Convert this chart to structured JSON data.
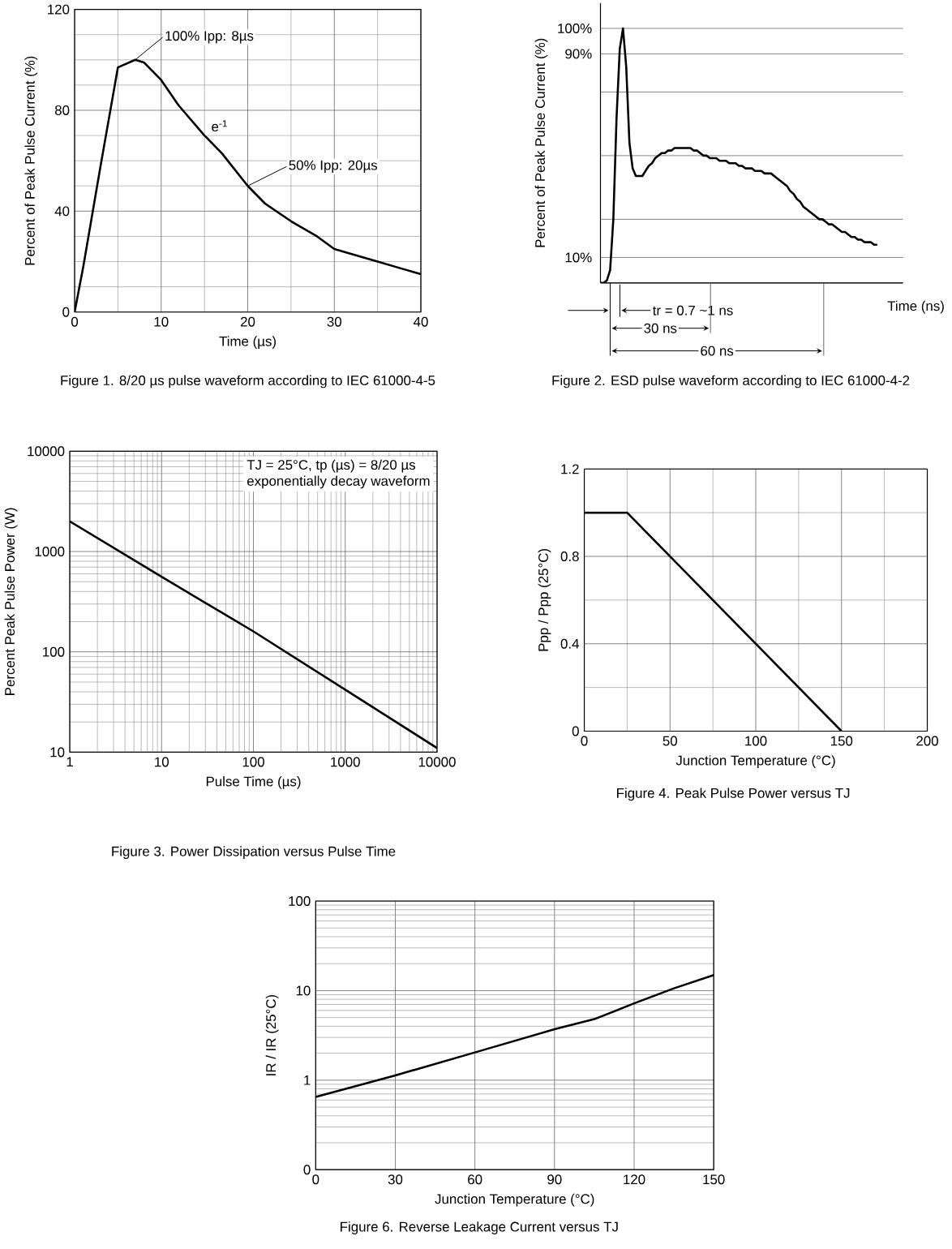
{
  "chart_data": [
    {
      "type": "line",
      "title": "Figure 1. 8/20 µs pulse waveform according to IEC 61000-4-5",
      "xlabel": "Time (µs)",
      "ylabel": "Percent of Peak Pulse Current (%)",
      "xlim": [
        0,
        40
      ],
      "ylim": [
        0,
        120
      ],
      "xticks": [
        0,
        10,
        20,
        30,
        40
      ],
      "yticks": [
        0,
        40,
        80,
        120
      ],
      "grid": true,
      "color": "#000000",
      "x": [
        0,
        1,
        3,
        5,
        7,
        8,
        10,
        12,
        15,
        17,
        20,
        22,
        25,
        28,
        30,
        32,
        35,
        38,
        40
      ],
      "values": [
        0,
        18,
        58,
        97,
        100,
        99,
        92,
        82,
        70,
        63,
        50,
        43,
        36,
        30,
        25,
        23,
        20,
        17,
        15
      ],
      "annotations": [
        {
          "text": "100% Ipp: 8µs",
          "x": 7,
          "y": 100
        },
        {
          "text": "e$^{-1}$",
          "x": 15,
          "y": 70
        },
        {
          "text": "50% Ipp: 20µs",
          "x": 20,
          "y": 50
        }
      ]
    },
    {
      "type": "line",
      "title": "Figure 2. ESD pulse waveform according to IEC 61000-4-2",
      "xlabel": "Time (ns)",
      "ylabel": "Percent of Peak Pulse Current (%)",
      "ylim": [
        0,
        110
      ],
      "yticks": [
        {
          "value": 0,
          "label": null
        },
        {
          "value": 10,
          "label": "10%"
        },
        {
          "value": 25,
          "label": null
        },
        {
          "value": 50,
          "label": null
        },
        {
          "value": 75,
          "label": null
        },
        {
          "value": 90,
          "label": "90%"
        },
        {
          "value": 100,
          "label": "100%"
        }
      ],
      "grid": "y",
      "color": "#000000",
      "categories": [
        null,
        null,
        null,
        null,
        null,
        null,
        null,
        null,
        null,
        null,
        null,
        null,
        null,
        null,
        null,
        null,
        null,
        null,
        null,
        null,
        null,
        null,
        null,
        null,
        null,
        null,
        null,
        null,
        null,
        null,
        null,
        null,
        null,
        null,
        null,
        null,
        null,
        null,
        null,
        null,
        null,
        null,
        null,
        null,
        null,
        null,
        null,
        null,
        null,
        null,
        null,
        null,
        null,
        null,
        null,
        null,
        null,
        null,
        null,
        null,
        null,
        null,
        null,
        null,
        null,
        null,
        null,
        null,
        null,
        null,
        null,
        null,
        null,
        null,
        null,
        null,
        null,
        null,
        null,
        null,
        null,
        null,
        null,
        null,
        null,
        null,
        null,
        null,
        null,
        null,
        null,
        null,
        null,
        null,
        null
      ],
      "values": [
        0,
        0,
        1,
        5,
        25,
        65,
        92,
        100,
        85,
        55,
        45,
        42,
        42,
        42,
        44,
        46,
        47,
        49,
        50,
        51,
        51,
        52,
        52,
        53,
        53,
        53,
        53,
        53,
        53,
        52,
        52,
        51,
        50,
        50,
        49,
        49,
        49,
        48,
        48,
        48,
        47,
        47,
        47,
        46,
        46,
        45,
        45,
        45,
        44,
        44,
        44,
        43,
        43,
        43,
        42,
        41,
        40,
        39,
        38,
        36,
        35,
        33,
        32,
        30,
        29,
        28,
        27,
        26,
        25,
        25,
        24,
        23,
        23,
        22,
        21,
        20,
        20,
        19,
        18,
        18,
        17,
        17,
        16,
        16,
        16,
        15,
        15,
        null,
        null,
        null,
        null,
        null,
        null,
        null,
        null
      ],
      "annotations": [
        "tr = 0.7 ~1 ns",
        "30 ns",
        "60 ns"
      ]
    },
    {
      "type": "line",
      "title": "Figure 3. Power Dissipation versus Pulse Time",
      "xlabel": "Pulse Time (µs)",
      "ylabel": "Percent Peak Pulse Power (W)",
      "log": "xy",
      "xlim": [
        1,
        10000
      ],
      "ylim": [
        10,
        10000
      ],
      "xticks": [
        1,
        10,
        100,
        1000,
        10000
      ],
      "yticks": [
        10,
        100,
        1000,
        10000
      ],
      "grid": true,
      "color": "#000000",
      "x": [
        1,
        10,
        100,
        1000,
        10000
      ],
      "values": [
        2000,
        560,
        160,
        42,
        11
      ],
      "annotations": [
        "TJ = 25°C, tp (µs) = 8/20 µs",
        "exponentially decay waveform"
      ]
    },
    {
      "type": "line",
      "title": "Figure 4. Peak Pulse Power versus TJ",
      "xlabel": "Junction Temperature (°C)",
      "ylabel": "Ppp / Ppp (25°C)",
      "xlim": [
        0,
        200
      ],
      "ylim": [
        0,
        1.2
      ],
      "xticks": [
        0,
        50,
        100,
        150,
        200
      ],
      "yticks": [
        0,
        0.4,
        0.8,
        1.2
      ],
      "grid": true,
      "color": "#000000",
      "x": [
        0,
        25,
        150
      ],
      "values": [
        1,
        1,
        0
      ]
    },
    {
      "type": "line",
      "title": "Figure 6. Reverse Leakage Current versus TJ",
      "xlabel": "Junction Temperature (°C)",
      "ylabel": "IR / IR (25°C)",
      "log": true,
      "xlim": [
        0,
        150
      ],
      "ylim": [
        0.1,
        100
      ],
      "xticks": [
        0,
        30,
        60,
        90,
        120,
        150
      ],
      "yticks": [
        {
          "value": 0.1,
          "label": "0"
        },
        1,
        10,
        100
      ],
      "grid": true,
      "color": "#000000",
      "x": [
        0,
        30,
        60,
        90,
        105,
        120,
        135,
        150
      ],
      "values": [
        0.65,
        1.13,
        2.04,
        3.7,
        4.8,
        7.2,
        10.6,
        14.9
      ]
    }
  ]
}
